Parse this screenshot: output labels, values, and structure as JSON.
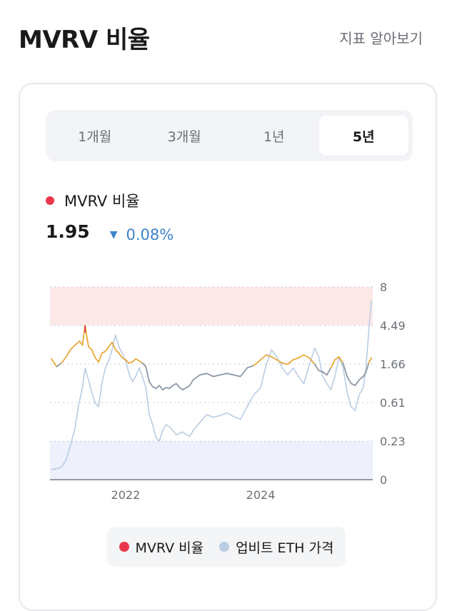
{
  "header": {
    "title": "MVRV 비율",
    "help_link": "지표 알아보기"
  },
  "tabs": [
    {
      "label": "1개월",
      "active": false
    },
    {
      "label": "3개월",
      "active": false
    },
    {
      "label": "1년",
      "active": false
    },
    {
      "label": "5년",
      "active": true
    }
  ],
  "metric": {
    "name": "MVRV 비율",
    "value": "1.95",
    "change": "0.08%",
    "change_direction": "down",
    "color": "#e8374c",
    "change_color": "#3f83c9"
  },
  "legend": [
    {
      "label": "MVRV 비율",
      "color": "#e8374c"
    },
    {
      "label": "업비트 ETH 가격",
      "color": "#b9cde3"
    }
  ],
  "chart_data": {
    "type": "line",
    "x_tick_labels": [
      "2022",
      "2024"
    ],
    "y_tick_labels": [
      "8",
      "4.49",
      "1.66",
      "0.61",
      "0.23",
      "0"
    ],
    "y_scale": "log",
    "high_zone": {
      "from": 4.49,
      "to": 8,
      "color": "#fde8e8"
    },
    "low_zone": {
      "from": 0,
      "to": 0.23,
      "color": "#eef0fb"
    },
    "grid": "dotted horizontal",
    "series": [
      {
        "name": "MVRV 비율",
        "colors": {
          "above_threshold": "#e8a93a",
          "below_threshold": "#8c98a6",
          "peak_marker": "#e8374c"
        },
        "threshold": 1.66,
        "x": [
          2020.9,
          2020.98,
          2021.05,
          2021.12,
          2021.18,
          2021.25,
          2021.32,
          2021.36,
          2021.4,
          2021.45,
          2021.5,
          2021.55,
          2021.6,
          2021.65,
          2021.7,
          2021.75,
          2021.8,
          2021.85,
          2021.9,
          2021.95,
          2022.0,
          2022.05,
          2022.1,
          2022.15,
          2022.2,
          2022.25,
          2022.3,
          2022.35,
          2022.4,
          2022.45,
          2022.5,
          2022.55,
          2022.6,
          2022.65,
          2022.7,
          2022.75,
          2022.8,
          2022.85,
          2022.9,
          2022.95,
          2023.0,
          2023.1,
          2023.2,
          2023.3,
          2023.4,
          2023.5,
          2023.6,
          2023.7,
          2023.8,
          2023.9,
          2024.0,
          2024.08,
          2024.16,
          2024.24,
          2024.32,
          2024.4,
          2024.48,
          2024.56,
          2024.64,
          2024.72,
          2024.8,
          2024.86,
          2024.92,
          2024.98,
          2025.04,
          2025.1,
          2025.16,
          2025.22,
          2025.28,
          2025.34,
          2025.4,
          2025.46,
          2025.52,
          2025.56,
          2025.6,
          2025.64
        ],
        "values": [
          1.9,
          1.55,
          1.7,
          2.0,
          2.4,
          2.7,
          3.0,
          2.7,
          4.49,
          2.6,
          2.4,
          1.95,
          1.75,
          2.2,
          2.3,
          2.6,
          2.9,
          2.4,
          2.2,
          1.95,
          1.85,
          1.7,
          1.75,
          1.9,
          1.8,
          1.7,
          1.55,
          1.05,
          0.92,
          0.88,
          0.95,
          0.85,
          0.9,
          0.88,
          0.95,
          1.0,
          0.9,
          0.85,
          0.9,
          0.95,
          1.1,
          1.25,
          1.3,
          1.2,
          1.25,
          1.3,
          1.25,
          1.2,
          1.5,
          1.6,
          1.85,
          2.1,
          2.0,
          1.85,
          1.7,
          1.65,
          1.85,
          1.95,
          2.1,
          1.95,
          1.65,
          1.4,
          1.35,
          1.25,
          1.5,
          1.85,
          2.0,
          1.7,
          1.2,
          1.0,
          0.95,
          1.1,
          1.2,
          1.35,
          1.7,
          1.95
        ]
      },
      {
        "name": "업비트 ETH 가격",
        "color": "#b9cde3",
        "x": [
          2020.9,
          2020.98,
          2021.05,
          2021.12,
          2021.18,
          2021.25,
          2021.3,
          2021.36,
          2021.4,
          2021.45,
          2021.5,
          2021.55,
          2021.6,
          2021.65,
          2021.7,
          2021.75,
          2021.8,
          2021.85,
          2021.9,
          2021.95,
          2022.0,
          2022.05,
          2022.1,
          2022.15,
          2022.2,
          2022.25,
          2022.3,
          2022.35,
          2022.4,
          2022.45,
          2022.5,
          2022.55,
          2022.6,
          2022.65,
          2022.7,
          2022.75,
          2022.8,
          2022.85,
          2022.9,
          2022.95,
          2023.0,
          2023.1,
          2023.2,
          2023.3,
          2023.4,
          2023.5,
          2023.6,
          2023.7,
          2023.8,
          2023.9,
          2024.0,
          2024.08,
          2024.16,
          2024.24,
          2024.32,
          2024.4,
          2024.48,
          2024.56,
          2024.64,
          2024.72,
          2024.8,
          2024.86,
          2024.92,
          2024.98,
          2025.04,
          2025.1,
          2025.16,
          2025.22,
          2025.28,
          2025.34,
          2025.4,
          2025.46,
          2025.52,
          2025.56,
          2025.6,
          2025.64
        ],
        "values": [
          0.06,
          0.065,
          0.075,
          0.12,
          0.2,
          0.32,
          0.55,
          0.9,
          1.5,
          1.1,
          0.8,
          0.6,
          0.55,
          1.0,
          1.5,
          1.8,
          2.4,
          3.5,
          2.6,
          2.2,
          1.8,
          1.3,
          1.05,
          1.2,
          1.5,
          1.2,
          0.9,
          0.45,
          0.35,
          0.25,
          0.23,
          0.3,
          0.35,
          0.33,
          0.3,
          0.27,
          0.28,
          0.29,
          0.27,
          0.26,
          0.3,
          0.37,
          0.45,
          0.42,
          0.44,
          0.47,
          0.43,
          0.4,
          0.55,
          0.75,
          0.9,
          1.6,
          2.4,
          2.0,
          1.5,
          1.25,
          1.5,
          1.2,
          1.0,
          1.6,
          2.5,
          2.0,
          1.2,
          1.0,
          0.85,
          1.2,
          2.0,
          1.5,
          0.8,
          0.55,
          0.5,
          0.75,
          0.9,
          1.5,
          3.8,
          6.5
        ]
      }
    ]
  }
}
